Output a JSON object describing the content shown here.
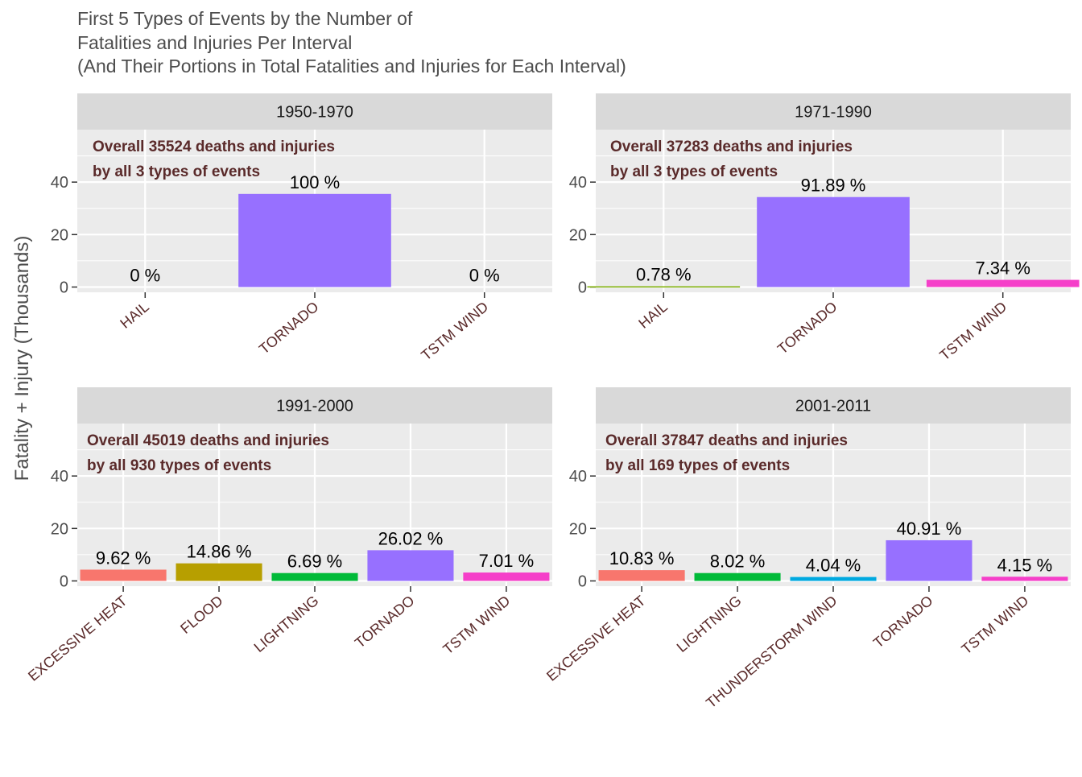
{
  "chart_data": {
    "type": "bar",
    "title_lines": [
      "First 5 Types of Events by the Number of",
      "Fatalities and Injuries Per Interval",
      "(And Their Portions in Total Fatalities and Injuries for Each Interval)"
    ],
    "ylabel": "Fatality + Injury (Thousands)",
    "ylim": [
      -2,
      60
    ],
    "yticks": [
      0,
      20,
      40
    ],
    "grid": true,
    "legend": "none",
    "colors": {
      "EXCESSIVE HEAT": "#F8766D",
      "FLOOD": "#B79F00",
      "HAIL": "#7CAE00",
      "LIGHTNING": "#00BA38",
      "THUNDERSTORM WIND": "#00A9E0",
      "TORNADO": "#9770FF",
      "TSTM WIND": "#F53FC9"
    },
    "panels": [
      {
        "strip": "1950-1970",
        "annotation": [
          "Overall 35524 deaths and injuries",
          "by all 3 types of events"
        ],
        "categories": [
          "HAIL",
          "TORNADO",
          "TSTM WIND"
        ],
        "values": [
          0,
          35.5,
          0
        ],
        "labels": [
          "0 %",
          "100 %",
          "0 %"
        ]
      },
      {
        "strip": "1971-1990",
        "annotation": [
          "Overall 37283 deaths and injuries",
          "by all 3 types of events"
        ],
        "categories": [
          "HAIL",
          "TORNADO",
          "TSTM WIND"
        ],
        "values": [
          0.29,
          34.3,
          2.74
        ],
        "labels": [
          "0.78 %",
          "91.89 %",
          "7.34 %"
        ]
      },
      {
        "strip": "1991-2000",
        "annotation": [
          "Overall 45019 deaths and injuries",
          "by all 930 types of events"
        ],
        "categories": [
          "EXCESSIVE HEAT",
          "FLOOD",
          "LIGHTNING",
          "TORNADO",
          "TSTM WIND"
        ],
        "values": [
          4.3,
          6.7,
          3.0,
          11.7,
          3.2
        ],
        "labels": [
          "9.62 %",
          "14.86 %",
          "6.69 %",
          "26.02 %",
          "7.01 %"
        ]
      },
      {
        "strip": "2001-2011",
        "annotation": [
          "Overall 37847 deaths and injuries",
          "by all 169 types of events"
        ],
        "categories": [
          "EXCESSIVE HEAT",
          "LIGHTNING",
          "THUNDERSTORM WIND",
          "TORNADO",
          "TSTM WIND"
        ],
        "values": [
          4.1,
          3.0,
          1.5,
          15.5,
          1.6
        ],
        "labels": [
          "10.83 %",
          "8.02 %",
          "4.04 %",
          "40.91 %",
          "4.15 %"
        ]
      }
    ]
  }
}
